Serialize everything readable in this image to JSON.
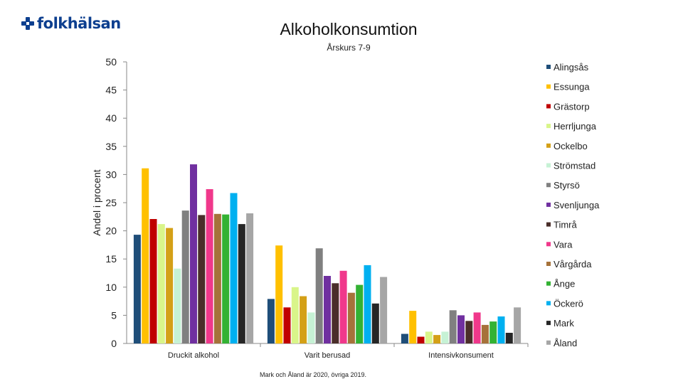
{
  "logo": {
    "text": "folkhälsan"
  },
  "chart_data": {
    "type": "bar",
    "title": "Alkoholkonsumtion",
    "subtitle": "Årskurs 7-9",
    "ylabel": "Andel i procent",
    "xlabel": "",
    "ylim": [
      0,
      50
    ],
    "yticks": [
      0,
      5,
      10,
      15,
      20,
      25,
      30,
      35,
      40,
      45,
      50
    ],
    "grid": false,
    "legend": "right",
    "categories": [
      "Druckit alkohol",
      "Varit berusad",
      "Intensivkonsument"
    ],
    "series": [
      {
        "name": "Alingsås",
        "color": "#1f4e79",
        "values": [
          19.3,
          7.9,
          1.7
        ]
      },
      {
        "name": "Essunga",
        "color": "#ffc000",
        "values": [
          31.1,
          17.4,
          5.8
        ]
      },
      {
        "name": "Grästorp",
        "color": "#c00000",
        "values": [
          22.1,
          6.4,
          1.2
        ]
      },
      {
        "name": "Herrljunga",
        "color": "#d9f58a",
        "values": [
          21.2,
          10.0,
          2.1
        ]
      },
      {
        "name": "Ockelbo",
        "color": "#d4a017",
        "values": [
          20.5,
          8.4,
          1.5
        ]
      },
      {
        "name": "Strömstad",
        "color": "#c6f2d5",
        "values": [
          13.3,
          5.5,
          2.1
        ]
      },
      {
        "name": "Styrsö",
        "color": "#808080",
        "values": [
          23.6,
          16.9,
          5.9
        ]
      },
      {
        "name": "Svenljunga",
        "color": "#7030a0",
        "values": [
          31.8,
          12.0,
          5.0
        ]
      },
      {
        "name": "Timrå",
        "color": "#4a2e2a",
        "values": [
          22.8,
          10.7,
          4.0
        ]
      },
      {
        "name": "Vara",
        "color": "#f0388b",
        "values": [
          27.4,
          12.9,
          5.5
        ]
      },
      {
        "name": "Vårgårda",
        "color": "#a6723a",
        "values": [
          23.0,
          9.0,
          3.3
        ]
      },
      {
        "name": "Ånge",
        "color": "#33b233",
        "values": [
          22.9,
          10.4,
          3.9
        ]
      },
      {
        "name": "Öckerö",
        "color": "#00b0f0",
        "values": [
          26.7,
          13.9,
          4.8
        ]
      },
      {
        "name": "Mark",
        "color": "#262626",
        "values": [
          21.2,
          7.1,
          1.9
        ]
      },
      {
        "name": "Åland",
        "color": "#a6a6a6",
        "values": [
          23.1,
          11.8,
          6.4
        ]
      }
    ],
    "footnote": "Mark och Åland är 2020, övriga 2019."
  }
}
